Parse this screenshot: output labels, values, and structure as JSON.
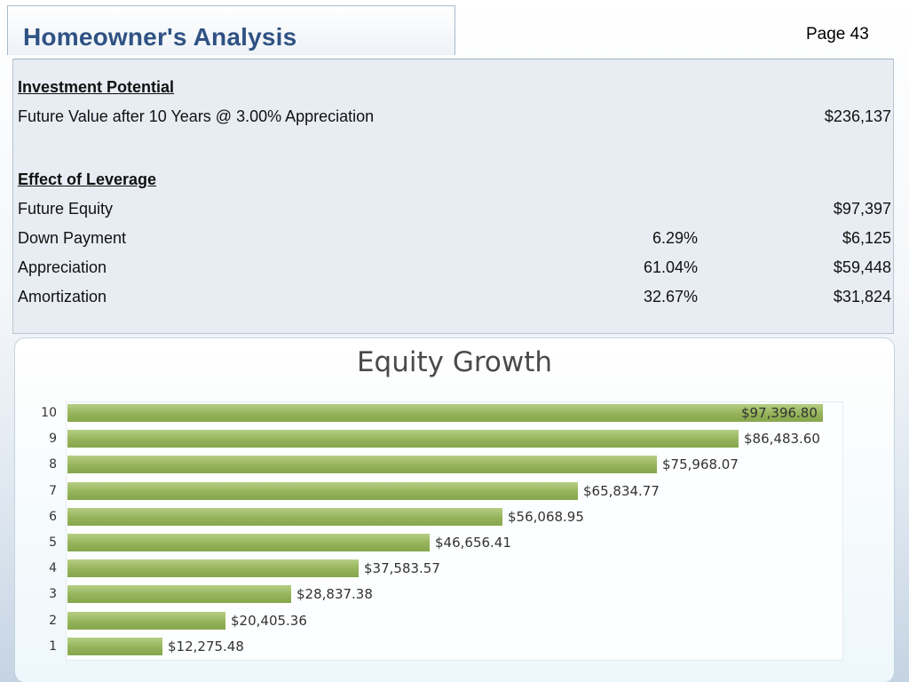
{
  "header": {
    "title": "Homeowner's Analysis",
    "page_label": "Page 43"
  },
  "investment_potential": {
    "heading": "Investment Potential",
    "future_value_label": "Future Value after 10 Years @ 3.00% Appreciation",
    "future_value": "$236,137"
  },
  "leverage": {
    "heading": "Effect of Leverage",
    "rows": [
      {
        "label": "Future Equity",
        "percent": "",
        "value": "$97,397"
      },
      {
        "label": "Down Payment",
        "percent": "6.29%",
        "value": "$6,125"
      },
      {
        "label": "Appreciation",
        "percent": "61.04%",
        "value": "$59,448"
      },
      {
        "label": "Amortization",
        "percent": "32.67%",
        "value": "$31,824"
      }
    ]
  },
  "colors": {
    "title": "#2f5283",
    "bar": "#94b35a"
  },
  "chart_data": {
    "type": "bar",
    "orientation": "horizontal",
    "title": "Equity Growth",
    "xlabel": "",
    "ylabel": "",
    "xlim": [
      0,
      100000
    ],
    "grid": false,
    "categories": [
      "10",
      "9",
      "8",
      "7",
      "6",
      "5",
      "4",
      "3",
      "2",
      "1"
    ],
    "values": [
      97396.8,
      86483.6,
      75968.07,
      65834.77,
      56068.95,
      46656.41,
      37583.57,
      28837.38,
      20405.36,
      12275.48
    ],
    "data_labels": [
      "$97,396.80",
      "$86,483.60",
      "$75,968.07",
      "$65,834.77",
      "$56,068.95",
      "$46,656.41",
      "$37,583.57",
      "$28,837.38",
      "$20,405.36",
      "$12,275.48"
    ]
  }
}
